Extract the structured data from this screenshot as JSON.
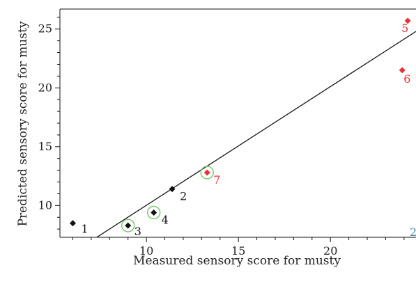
{
  "chart_data": {
    "type": "scatter",
    "xlabel": "Measured sensory score for musty",
    "ylabel": "Predicted sensory score for musty",
    "xlim": [
      5.3,
      24.65
    ],
    "ylim": [
      7.3,
      26.7
    ],
    "x_ticks": [
      10,
      15,
      20
    ],
    "y_ticks": [
      10,
      15,
      20,
      25
    ],
    "x_tick_labels": [
      "10",
      "15",
      "20"
    ],
    "y_tick_labels": [
      "10",
      "15",
      "20",
      "25"
    ],
    "grid": false,
    "legend": "none",
    "regression_line": {
      "from": [
        7.3,
        7.3
      ],
      "to": [
        24.65,
        24.8
      ]
    },
    "colors": {
      "black": "#111111",
      "red": "#e8313a",
      "circle": "#7bc96f",
      "teal": "#4a8fa0"
    },
    "points": [
      {
        "label": "1",
        "x": 6.0,
        "y": 8.5,
        "color": "black",
        "circled": false
      },
      {
        "label": "2",
        "x": 11.4,
        "y": 11.4,
        "color": "black",
        "circled": false
      },
      {
        "label": "3",
        "x": 9.0,
        "y": 8.3,
        "color": "black",
        "circled": true
      },
      {
        "label": "4",
        "x": 10.4,
        "y": 9.4,
        "color": "black",
        "circled": true
      },
      {
        "label": "5",
        "x": 24.2,
        "y": 25.7,
        "color": "red",
        "circled": false
      },
      {
        "label": "6",
        "x": 23.9,
        "y": 21.5,
        "color": "red",
        "circled": false
      },
      {
        "label": "7",
        "x": 13.3,
        "y": 12.8,
        "color": "red",
        "circled": true
      }
    ],
    "edge_label": "2"
  }
}
